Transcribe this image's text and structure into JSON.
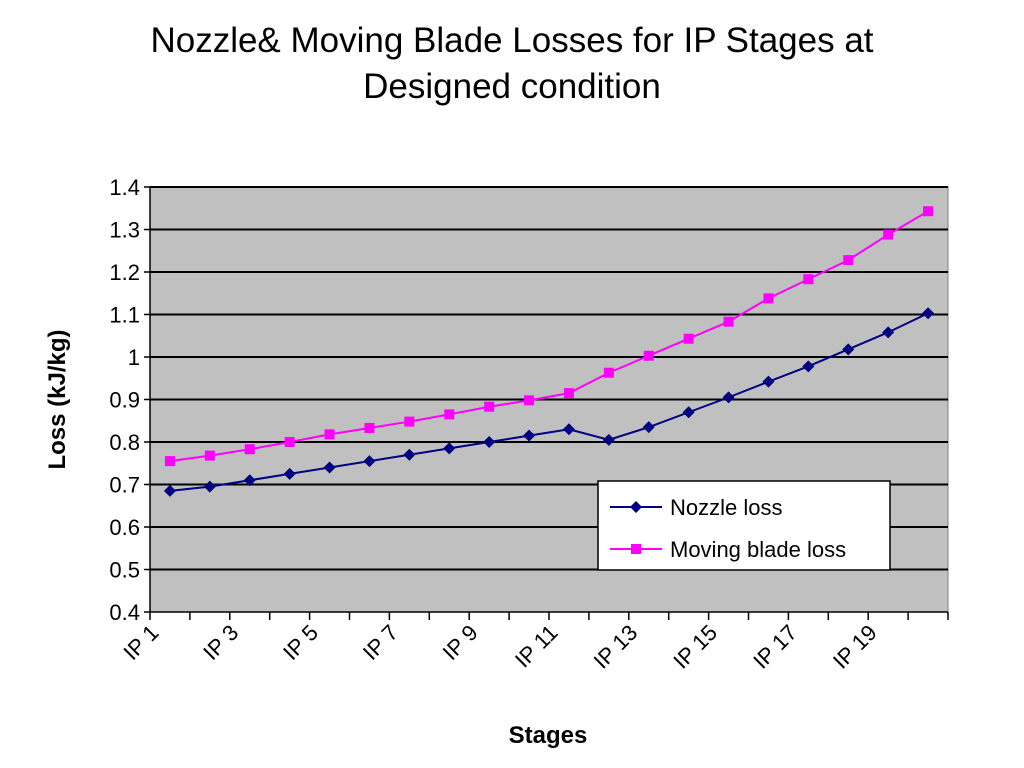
{
  "chart_data": {
    "type": "line",
    "title_line1": "Nozzle& Moving Blade Losses for IP Stages at",
    "title_line2": "Designed condition",
    "xlabel": "Stages",
    "ylabel": "Loss (kJ/kg)",
    "ylim": [
      0.4,
      1.4
    ],
    "yticks": [
      "0.4",
      "0.5",
      "0.6",
      "0.7",
      "0.8",
      "0.9",
      "1",
      "1.1",
      "1.2",
      "1.3",
      "1.4"
    ],
    "categories": [
      "IP 1",
      "IP 2",
      "IP 3",
      "IP 4",
      "IP 5",
      "IP 6",
      "IP 7",
      "IP 8",
      "IP 9",
      "IP 10",
      "IP 11",
      "IP 12",
      "IP 13",
      "IP 14",
      "IP 15",
      "IP 16",
      "IP 17",
      "IP 18",
      "IP 19",
      "IP 20"
    ],
    "xtick_labels": [
      "IP 1",
      "IP 3",
      "IP 5",
      "IP 7",
      "IP 9",
      "IP 11",
      "IP 13",
      "IP 15",
      "IP 17",
      "IP 19"
    ],
    "grid": "horizontal",
    "legend_position": "bottom-right",
    "series": [
      {
        "name": "Nozzle loss",
        "color": "#000080",
        "marker": "diamond",
        "values": [
          0.685,
          0.695,
          0.71,
          0.725,
          0.74,
          0.755,
          0.77,
          0.785,
          0.8,
          0.815,
          0.83,
          0.805,
          0.835,
          0.87,
          0.905,
          0.942,
          0.978,
          1.018,
          1.058,
          1.103
        ]
      },
      {
        "name": "Moving blade loss",
        "color": "#ff00ff",
        "marker": "square",
        "values": [
          0.755,
          0.768,
          0.783,
          0.8,
          0.818,
          0.833,
          0.848,
          0.865,
          0.883,
          0.898,
          0.915,
          0.963,
          1.003,
          1.043,
          1.083,
          1.138,
          1.183,
          1.228,
          1.288,
          1.343
        ]
      }
    ],
    "plot_background": "#c0c0c0"
  }
}
